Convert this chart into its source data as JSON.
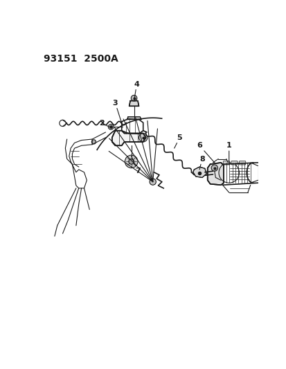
{
  "title": "93151  2500A",
  "bg_color": "#ffffff",
  "line_color": "#1a1a1a",
  "title_fontsize": 10,
  "fig_width": 4.14,
  "fig_height": 5.33,
  "dpi": 100
}
